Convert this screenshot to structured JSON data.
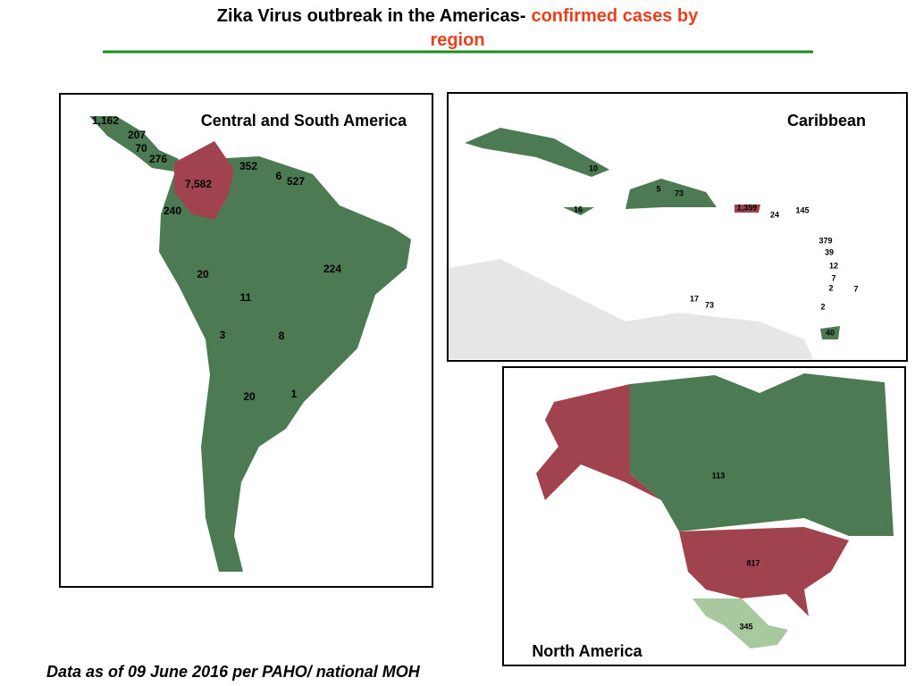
{
  "header": {
    "title": "Zika Virus outbreak in the Americas-",
    "title_highlight": "confirmed cases by region"
  },
  "panels": [
    {
      "title": "Central and South America",
      "labels": [
        "1,162",
        "207",
        "70",
        "276",
        "352",
        "6",
        "527",
        "7,582",
        "240",
        "224",
        "20",
        "11",
        "3",
        "8",
        "20",
        "1"
      ]
    },
    {
      "title": "Caribbean",
      "labels": [
        "10",
        "5",
        "73",
        "16",
        "1,359",
        "24",
        "145",
        "379",
        "39",
        "12",
        "7",
        "2",
        "7",
        "17",
        "73",
        "2",
        "40"
      ]
    },
    {
      "title": "North America",
      "labels": [
        "113",
        "817",
        "345"
      ]
    }
  ],
  "footer": "Data as of 09 June 2016 per PAHO/ national MOH"
}
